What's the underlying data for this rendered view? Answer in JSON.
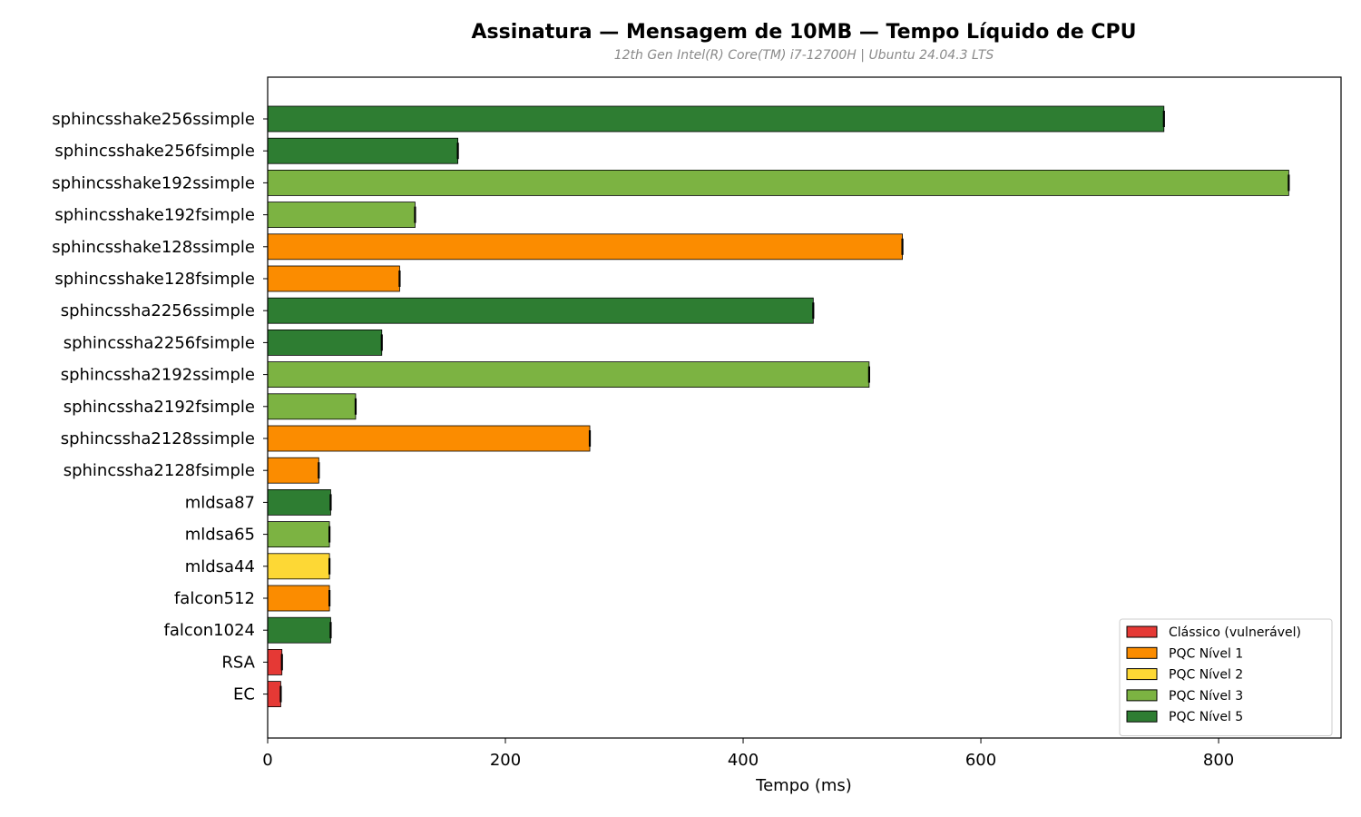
{
  "chart_data": {
    "type": "bar",
    "orientation": "horizontal",
    "title": "Assinatura — Mensagem de 10MB — Tempo Líquido de CPU",
    "subtitle": "12th Gen Intel(R) Core(TM) i7-12700H | Ubuntu 24.04.3 LTS",
    "xlabel": "Tempo (ms)",
    "ylabel": "",
    "xlim": [
      0,
      903
    ],
    "xticks": [
      0,
      200,
      400,
      600,
      800
    ],
    "grid": false,
    "legend_position": "bottom-right",
    "categories": [
      "sphincsshake256ssimple",
      "sphincsshake256fsimple",
      "sphincsshake192ssimple",
      "sphincsshake192fsimple",
      "sphincsshake128ssimple",
      "sphincsshake128fsimple",
      "sphincssha2256ssimple",
      "sphincssha2256fsimple",
      "sphincssha2192ssimple",
      "sphincssha2192fsimple",
      "sphincssha2128ssimple",
      "sphincssha2128fsimple",
      "mldsa87",
      "mldsa65",
      "mldsa44",
      "falcon512",
      "falcon1024",
      "RSA",
      "EC"
    ],
    "values": [
      754,
      160,
      859,
      124,
      534,
      111,
      459,
      96,
      506,
      74,
      271,
      43,
      53,
      52,
      52,
      52,
      53,
      12,
      11
    ],
    "errors": [
      1,
      1,
      1,
      0.6,
      1,
      0.6,
      1,
      0.6,
      1,
      0.5,
      0.6,
      0.8,
      0.5,
      0.5,
      0.5,
      0.5,
      0.8,
      0.5,
      0.3
    ],
    "groups": [
      "PQC Nível 5",
      "PQC Nível 5",
      "PQC Nível 3",
      "PQC Nível 3",
      "PQC Nível 1",
      "PQC Nível 1",
      "PQC Nível 5",
      "PQC Nível 5",
      "PQC Nível 3",
      "PQC Nível 3",
      "PQC Nível 1",
      "PQC Nível 1",
      "PQC Nível 5",
      "PQC Nível 3",
      "PQC Nível 2",
      "PQC Nível 1",
      "PQC Nível 5",
      "Clássico (vulnerável)",
      "Clássico (vulnerável)"
    ],
    "legend": [
      {
        "label": "Clássico (vulnerável)",
        "color": "#e53935"
      },
      {
        "label": "PQC Nível 1",
        "color": "#fb8c00"
      },
      {
        "label": "PQC Nível 2",
        "color": "#fdd835"
      },
      {
        "label": "PQC Nível 3",
        "color": "#7cb342"
      },
      {
        "label": "PQC Nível 5",
        "color": "#2e7d32"
      }
    ]
  }
}
